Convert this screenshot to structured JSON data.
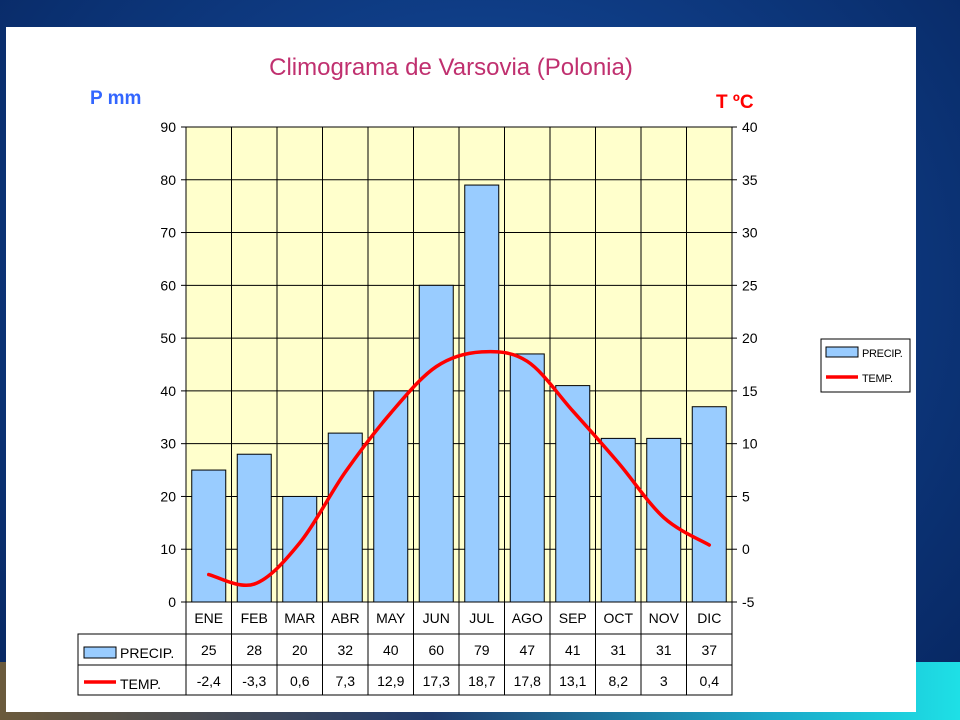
{
  "chart_data": {
    "type": "bar+line",
    "title": "Climograma de Varsovia (Polonia)",
    "ylabel_left": "P mm",
    "ylabel_right": "T ºC",
    "categories": [
      "ENE",
      "FEB",
      "MAR",
      "ABR",
      "MAY",
      "JUN",
      "JUL",
      "AGO",
      "SEP",
      "OCT",
      "NOV",
      "DIC"
    ],
    "precip": {
      "name": "PRECIP.",
      "values": [
        25,
        28,
        20,
        32,
        40,
        60,
        79,
        47,
        41,
        31,
        31,
        37
      ],
      "color": "#99ccff"
    },
    "temp": {
      "name": "TEMP.",
      "values": [
        -2.4,
        -3.3,
        0.6,
        7.3,
        12.9,
        17.3,
        18.7,
        17.8,
        13.1,
        8.2,
        3,
        0.4
      ],
      "labels": [
        "-2,4",
        "-3,3",
        "0,6",
        "7,3",
        "12,9",
        "17,3",
        "18,7",
        "17,8",
        "13,1",
        "8,2",
        "3",
        "0,4"
      ],
      "color": "#ff0000"
    },
    "ylim_left": [
      0,
      90
    ],
    "yticks_left": [
      0,
      10,
      20,
      30,
      40,
      50,
      60,
      70,
      80,
      90
    ],
    "ylim_right": [
      -5,
      40
    ],
    "yticks_right": [
      -5,
      0,
      5,
      10,
      15,
      20,
      25,
      30,
      35,
      40
    ],
    "grid": true,
    "plot_background": "#ffffcc",
    "legend_position": "right",
    "data_table": true
  }
}
